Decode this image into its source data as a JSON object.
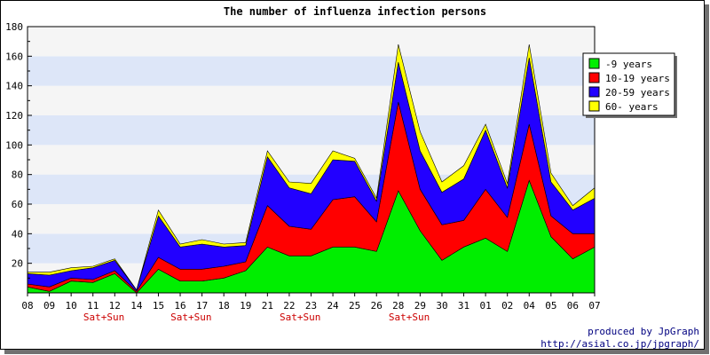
{
  "chart_data": {
    "type": "area",
    "stacked": true,
    "title": "The number of influenza infection persons",
    "ylim": [
      0,
      180
    ],
    "yticks": [
      20,
      40,
      60,
      80,
      100,
      120,
      140,
      160,
      180
    ],
    "categories": [
      "08",
      "09",
      "10",
      "11",
      "12",
      "14",
      "15",
      "16",
      "17",
      "18",
      "19",
      "21",
      "22",
      "23",
      "24",
      "25",
      "26",
      "28",
      "29",
      "30",
      "31",
      "01",
      "02",
      "04",
      "05",
      "06",
      "07"
    ],
    "weekend_labels": [
      {
        "label": "Sat+Sun",
        "after": "11"
      },
      {
        "label": "Sat+Sun",
        "after": "16"
      },
      {
        "label": "Sat+Sun",
        "after": "22"
      },
      {
        "label": "Sat+Sun",
        "after": "28"
      }
    ],
    "legend_position": "right",
    "grid": "horizontal bands",
    "series": [
      {
        "name": "-9 years",
        "color": "#00ee00",
        "values": [
          4,
          1,
          8,
          7,
          13,
          0,
          16,
          8,
          8,
          10,
          15,
          31,
          25,
          25,
          31,
          31,
          28,
          69,
          42,
          22,
          31,
          37,
          28,
          76,
          38,
          23,
          31
        ]
      },
      {
        "name": "10-19 years",
        "color": "#ff0000",
        "values": [
          2,
          3,
          2,
          2,
          2,
          1,
          8,
          8,
          8,
          8,
          6,
          28,
          20,
          18,
          32,
          34,
          20,
          60,
          28,
          24,
          18,
          33,
          23,
          38,
          14,
          17,
          9
        ]
      },
      {
        "name": "20-59 years",
        "color": "#2200ff",
        "values": [
          7,
          8,
          5,
          8,
          7,
          1,
          28,
          15,
          17,
          13,
          11,
          33,
          26,
          24,
          27,
          24,
          14,
          27,
          26,
          22,
          28,
          40,
          20,
          45,
          23,
          16,
          24
        ]
      },
      {
        "name": "60- years",
        "color": "#ffff00",
        "values": [
          1,
          2,
          2,
          1,
          1,
          0,
          4,
          2,
          3,
          2,
          2,
          4,
          4,
          7,
          6,
          2,
          2,
          12,
          13,
          7,
          9,
          4,
          3,
          9,
          6,
          3,
          7
        ]
      }
    ]
  },
  "credit": {
    "line1": "produced by JpGraph",
    "line2": "http://asial.co.jp/jpgraph/"
  }
}
